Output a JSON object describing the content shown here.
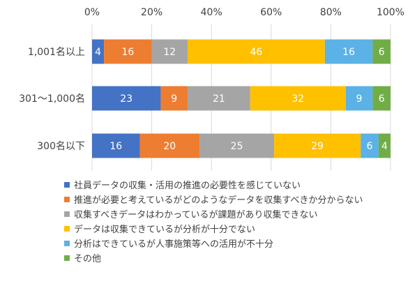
{
  "chart_data": {
    "type": "bar",
    "orientation": "horizontal",
    "stacked": true,
    "percent": true,
    "xlim": [
      0,
      100
    ],
    "x_ticks": [
      "0%",
      "20%",
      "40%",
      "60%",
      "80%",
      "100%"
    ],
    "categories": [
      "1,001名以上",
      "301～1,000名",
      "300名以下"
    ],
    "series": [
      {
        "name": "社員データの収集・活用の推進の必要性を感じていない",
        "color": "#4472C4",
        "values": [
          4,
          23,
          16
        ]
      },
      {
        "name": "推進が必要と考えているがどのようなデータを収集すべきか分からない",
        "color": "#ED7D31",
        "values": [
          16,
          9,
          20
        ]
      },
      {
        "name": "収集すべきデータはわかっているが課題があり収集できない",
        "color": "#A5A5A5",
        "values": [
          12,
          21,
          25
        ]
      },
      {
        "name": "データは収集できているが分析が十分でない",
        "color": "#FFC000",
        "values": [
          46,
          32,
          29
        ]
      },
      {
        "name": "分析はできているが人事施策等への活用が不十分",
        "color": "#5BB2E6",
        "values": [
          16,
          9,
          6
        ]
      },
      {
        "name": "その他",
        "color": "#70AD47",
        "values": [
          6,
          6,
          4
        ]
      }
    ],
    "legend_position": "bottom",
    "grid": true
  }
}
